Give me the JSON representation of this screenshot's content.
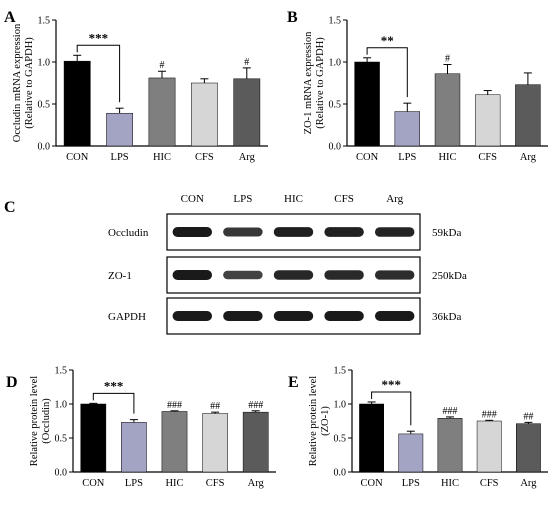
{
  "colors": {
    "CON": "#000000",
    "LPS": "#a3a3c3",
    "HIC": "#7f7f7f",
    "CFS": "#d6d6d6",
    "Arg": "#5b5b5b",
    "axis": "#000000",
    "blot_frame": "#000000",
    "band": "#1a1a1a"
  },
  "chart_data": [
    {
      "panel": "A",
      "type": "bar",
      "ylabel": "Occludin mRNA expression\n(Relative to GAPDH)",
      "xlabel": "",
      "categories": [
        "CON",
        "LPS",
        "HIC",
        "CFS",
        "Arg"
      ],
      "values": [
        1.01,
        0.39,
        0.81,
        0.75,
        0.8
      ],
      "errors": [
        0.07,
        0.06,
        0.08,
        0.05,
        0.13
      ],
      "ylim": [
        0,
        1.5
      ],
      "yticks": [
        "0.0",
        "0.5",
        "1.0",
        "1.5"
      ],
      "sig_bracket": {
        "from": 0,
        "to": 1,
        "label": "***"
      },
      "bar_labels": [
        "",
        "",
        "#",
        "",
        "#"
      ]
    },
    {
      "panel": "B",
      "type": "bar",
      "ylabel": "ZO-1 mRNA expression\n(Relative to GAPDH)",
      "xlabel": "",
      "categories": [
        "CON",
        "LPS",
        "HIC",
        "CFS",
        "Arg"
      ],
      "values": [
        1.0,
        0.41,
        0.86,
        0.61,
        0.73
      ],
      "errors": [
        0.05,
        0.1,
        0.11,
        0.05,
        0.14
      ],
      "ylim": [
        0,
        1.5
      ],
      "yticks": [
        "0.0",
        "0.5",
        "1.0",
        "1.5"
      ],
      "sig_bracket": {
        "from": 0,
        "to": 1,
        "label": "**"
      },
      "bar_labels": [
        "",
        "",
        "#",
        "",
        ""
      ]
    },
    {
      "panel": "D",
      "type": "bar",
      "ylabel": "Relative protein level\n(Occludin)",
      "xlabel": "",
      "categories": [
        "CON",
        "LPS",
        "HIC",
        "CFS",
        "Arg"
      ],
      "values": [
        1.0,
        0.73,
        0.89,
        0.86,
        0.88
      ],
      "errors": [
        0.01,
        0.04,
        0.01,
        0.02,
        0.02
      ],
      "ylim": [
        0,
        1.5
      ],
      "yticks": [
        "0.0",
        "0.5",
        "1.0",
        "1.5"
      ],
      "sig_bracket": {
        "from": 0,
        "to": 1,
        "label": "***"
      },
      "bar_labels": [
        "",
        "",
        "###",
        "##",
        "###"
      ]
    },
    {
      "panel": "E",
      "type": "bar",
      "ylabel": "Relative protein level\n(ZO-1)",
      "xlabel": "",
      "categories": [
        "CON",
        "LPS",
        "HIC",
        "CFS",
        "Arg"
      ],
      "values": [
        1.0,
        0.56,
        0.79,
        0.75,
        0.71
      ],
      "errors": [
        0.03,
        0.04,
        0.02,
        0.01,
        0.02
      ],
      "ylim": [
        0,
        1.5
      ],
      "yticks": [
        "0.0",
        "0.5",
        "1.0",
        "1.5"
      ],
      "sig_bracket": {
        "from": 0,
        "to": 1,
        "label": "***"
      },
      "bar_labels": [
        "",
        "",
        "###",
        "###",
        "##"
      ]
    }
  ],
  "western_blot": {
    "panel": "C",
    "lanes": [
      "CON",
      "LPS",
      "HIC",
      "CFS",
      "Arg"
    ],
    "rows": [
      {
        "protein": "Occludin",
        "size": "59kDa",
        "band_intensity": [
          1.0,
          0.72,
          0.95,
          0.93,
          0.9
        ]
      },
      {
        "protein": "ZO-1",
        "size": "250kDa",
        "band_intensity": [
          1.0,
          0.62,
          0.88,
          0.85,
          0.82
        ]
      },
      {
        "protein": "GAPDH",
        "size": "36kDa",
        "band_intensity": [
          1.0,
          1.0,
          1.0,
          1.0,
          1.0
        ]
      }
    ]
  }
}
